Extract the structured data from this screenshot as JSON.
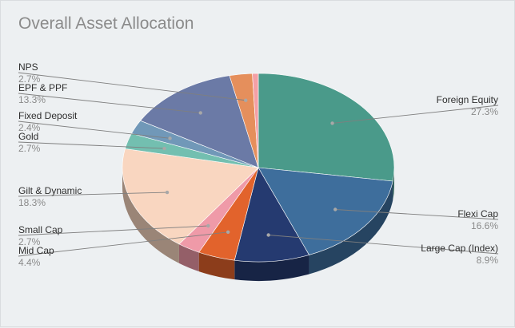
{
  "chart_data": {
    "type": "pie",
    "title": "Overall Asset Allocation",
    "slices": [
      {
        "label": "Foreign Equity",
        "value": 27.3,
        "display": "27.3%",
        "color": "#4a9a8a"
      },
      {
        "label": "Flexi Cap",
        "value": 16.6,
        "display": "16.6%",
        "color": "#3e6e9c"
      },
      {
        "label": "Large Cap (Index)",
        "value": 8.9,
        "display": "8.9%",
        "color": "#253a70"
      },
      {
        "label": "Mid Cap",
        "value": 4.4,
        "display": "4.4%",
        "color": "#e2632c"
      },
      {
        "label": "Small Cap",
        "value": 2.7,
        "display": "2.7%",
        "color": "#ef9aa8"
      },
      {
        "label": "Gilt & Dynamic",
        "value": 18.3,
        "display": "18.3%",
        "color": "#f9d6c0"
      },
      {
        "label": "Gold",
        "value": 2.7,
        "display": "2.7%",
        "color": "#73bfb0"
      },
      {
        "label": "Fixed Deposit",
        "value": 2.4,
        "display": "2.4%",
        "color": "#7198b8"
      },
      {
        "label": "EPF & PPF",
        "value": 13.3,
        "display": "13.3%",
        "color": "#6b7aa6"
      },
      {
        "label": "NPS",
        "value": 2.7,
        "display": "2.7%",
        "color": "#e58f5c"
      },
      {
        "label": "",
        "value": 0.7,
        "display": "",
        "color": "#f3a0a6"
      }
    ],
    "legend": "labels-with-leaders"
  }
}
